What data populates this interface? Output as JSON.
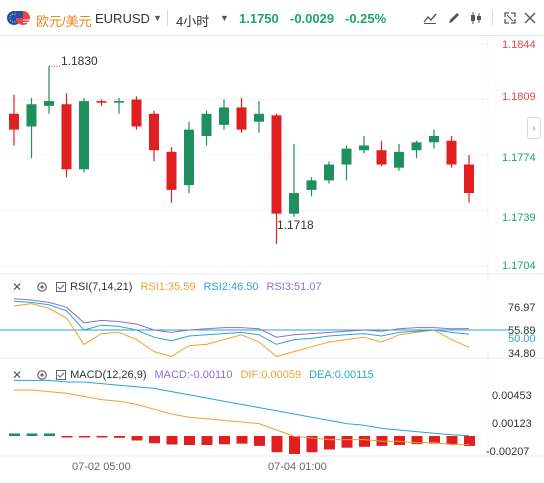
{
  "header": {
    "symbol_name": "欧元/美元",
    "symbol_code": "EURUSD",
    "interval": "4小时",
    "price": "1.1750",
    "change": "-0.0029",
    "change_pct": "-0.25%"
  },
  "price_axis": [
    "1.1844",
    "1.1809",
    "1.1774",
    "1.1739",
    "1.1704"
  ],
  "annotations": {
    "high": "1.1830",
    "low": "1.1718"
  },
  "rsi": {
    "title": "RSI(7,14,21)",
    "rsi1": "RSI1:35.59",
    "rsi2": "RSI2:46.50",
    "rsi3": "RSI3:51.07",
    "axis": [
      "76.97",
      "55.89",
      "50.00",
      "34.80"
    ]
  },
  "macd": {
    "title": "MACD(12,26,9)",
    "macd": "MACD:-0.00110",
    "dif": "DIF:0.00059",
    "dea": "DEA:0.00115",
    "axis": [
      "0.00453",
      "0.00123",
      "-0.00207"
    ]
  },
  "time_axis": [
    "07-02 05:00",
    "07-04 01:00"
  ],
  "colors": {
    "up": "#1e8f5e",
    "down": "#e02020",
    "accent": "#1aa86b"
  },
  "chart_data": {
    "type": "candlestick",
    "candles": [
      {
        "o": 1.18,
        "h": 1.1812,
        "l": 1.178,
        "c": 1.179
      },
      {
        "o": 1.1792,
        "h": 1.181,
        "l": 1.1772,
        "c": 1.1806
      },
      {
        "o": 1.1805,
        "h": 1.183,
        "l": 1.18,
        "c": 1.1808
      },
      {
        "o": 1.1806,
        "h": 1.1813,
        "l": 1.176,
        "c": 1.1765
      },
      {
        "o": 1.1765,
        "h": 1.181,
        "l": 1.1763,
        "c": 1.1808
      },
      {
        "o": 1.1808,
        "h": 1.1809,
        "l": 1.1805,
        "c": 1.1807
      },
      {
        "o": 1.1807,
        "h": 1.181,
        "l": 1.18,
        "c": 1.1808
      },
      {
        "o": 1.1809,
        "h": 1.1811,
        "l": 1.179,
        "c": 1.1792
      },
      {
        "o": 1.18,
        "h": 1.1802,
        "l": 1.177,
        "c": 1.1777
      },
      {
        "o": 1.1776,
        "h": 1.1779,
        "l": 1.1744,
        "c": 1.1752
      },
      {
        "o": 1.1755,
        "h": 1.1795,
        "l": 1.175,
        "c": 1.179
      },
      {
        "o": 1.1786,
        "h": 1.1802,
        "l": 1.178,
        "c": 1.18
      },
      {
        "o": 1.1793,
        "h": 1.1809,
        "l": 1.179,
        "c": 1.1804
      },
      {
        "o": 1.1804,
        "h": 1.181,
        "l": 1.1788,
        "c": 1.179
      },
      {
        "o": 1.1795,
        "h": 1.1808,
        "l": 1.1788,
        "c": 1.18
      },
      {
        "o": 1.1799,
        "h": 1.18,
        "l": 1.1718,
        "c": 1.1737
      },
      {
        "o": 1.1737,
        "h": 1.1781,
        "l": 1.1735,
        "c": 1.175
      },
      {
        "o": 1.1752,
        "h": 1.176,
        "l": 1.1748,
        "c": 1.1758
      },
      {
        "o": 1.1758,
        "h": 1.177,
        "l": 1.1756,
        "c": 1.1768
      },
      {
        "o": 1.1768,
        "h": 1.178,
        "l": 1.1758,
        "c": 1.1778
      },
      {
        "o": 1.1777,
        "h": 1.1786,
        "l": 1.1775,
        "c": 1.178
      },
      {
        "o": 1.1777,
        "h": 1.1783,
        "l": 1.1767,
        "c": 1.1768
      },
      {
        "o": 1.1766,
        "h": 1.1781,
        "l": 1.1764,
        "c": 1.1776
      },
      {
        "o": 1.1777,
        "h": 1.1783,
        "l": 1.1772,
        "c": 1.1782
      },
      {
        "o": 1.1782,
        "h": 1.179,
        "l": 1.1778,
        "c": 1.1786
      },
      {
        "o": 1.1783,
        "h": 1.1786,
        "l": 1.1766,
        "c": 1.1768
      },
      {
        "o": 1.1768,
        "h": 1.1774,
        "l": 1.1744,
        "c": 1.175
      }
    ],
    "macd_hist": [
      0.00028,
      0.00028,
      0.00028,
      -0.0001,
      -0.0001,
      -0.0001,
      -0.0002,
      -0.0005,
      -0.0008,
      -0.00095,
      -0.001,
      -0.001,
      -0.00092,
      -0.00085,
      -0.0011,
      -0.0018,
      -0.002,
      -0.0018,
      -0.0015,
      -0.0013,
      -0.0012,
      -0.0011,
      -0.001,
      -0.0009,
      -0.00085,
      -0.00095,
      -0.0011
    ]
  }
}
